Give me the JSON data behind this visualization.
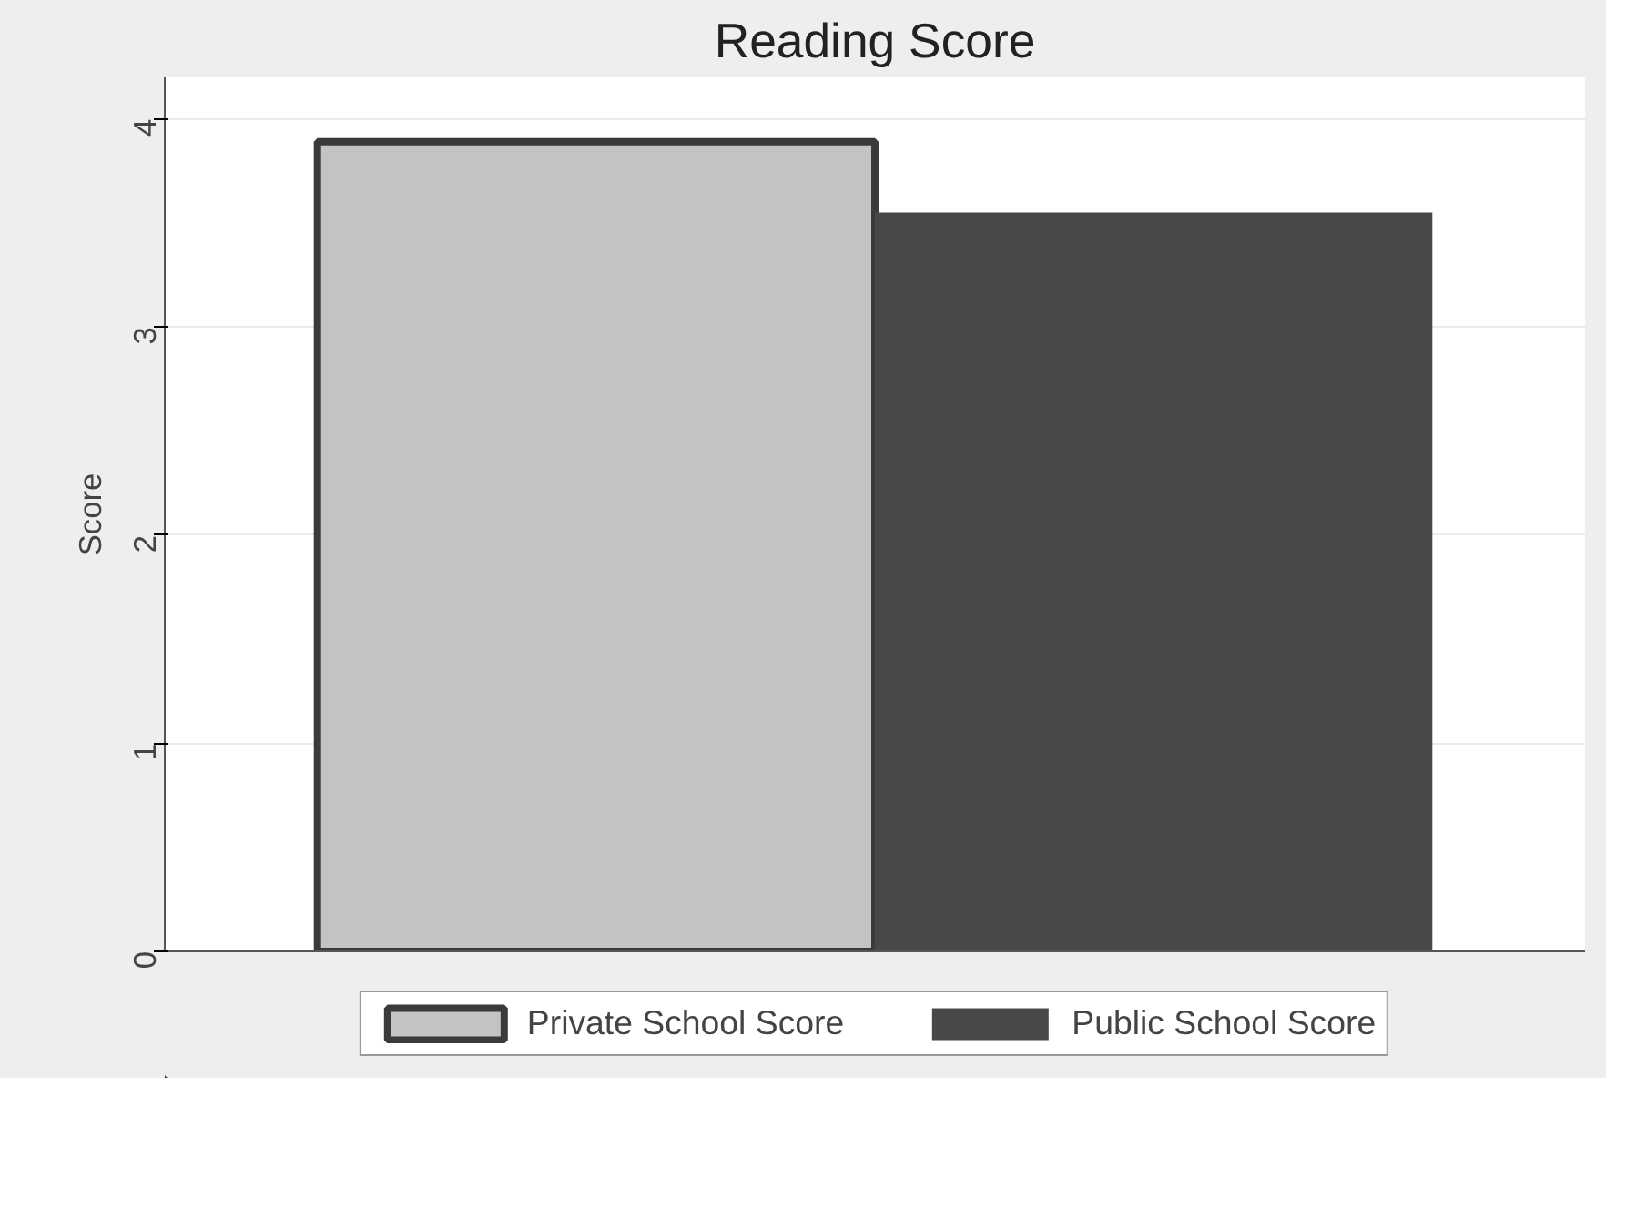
{
  "chart_data": {
    "type": "bar",
    "title": "Reading Score",
    "ylabel": "Score",
    "categories": [
      null
    ],
    "series": [
      {
        "name": "Private School Score",
        "color": "#c3c3c3",
        "values": [
          3.89
        ]
      },
      {
        "name": "Public School Score",
        "color": "#484848",
        "values": [
          3.55
        ]
      }
    ],
    "ylim": [
      0,
      4.2
    ],
    "yticks": [
      0,
      1,
      2,
      3,
      4
    ],
    "grid": "y",
    "legend": "bottom",
    "tick_labels": "y"
  }
}
